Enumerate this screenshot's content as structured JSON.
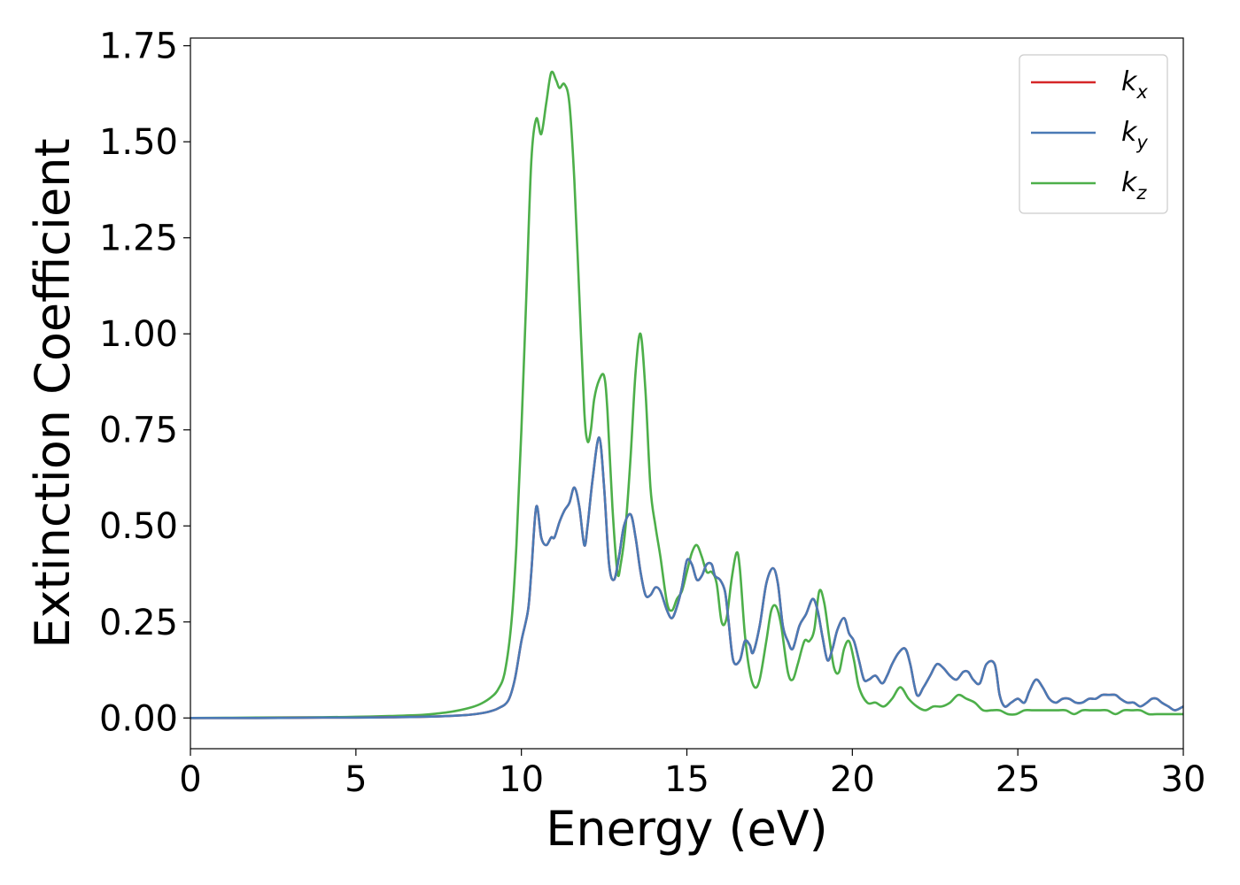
{
  "chart_data": {
    "type": "line",
    "xlabel": "Energy (eV)",
    "ylabel": "Extinction Coefficient",
    "xlim": [
      0,
      30
    ],
    "ylim": [
      -0.08,
      1.77
    ],
    "xticks": [
      "0",
      "5",
      "10",
      "15",
      "20",
      "25",
      "30"
    ],
    "yticks": [
      "0.00",
      "0.25",
      "0.50",
      "0.75",
      "1.00",
      "1.25",
      "1.50",
      "1.75"
    ],
    "grid": false,
    "legend_position": "top-right",
    "series": [
      {
        "name": "k_x",
        "legend_base": "k",
        "legend_sub": "x",
        "color": "#d62728",
        "x": [
          0,
          2,
          4,
          5,
          6,
          7,
          8,
          8.5,
          9,
          9.3,
          9.6,
          9.8,
          10.0,
          10.2,
          10.3,
          10.45,
          10.6,
          10.75,
          10.9,
          11.0,
          11.15,
          11.3,
          11.45,
          11.6,
          11.75,
          11.9,
          12.0,
          12.15,
          12.35,
          12.5,
          12.65,
          12.8,
          12.95,
          13.1,
          13.3,
          13.45,
          13.6,
          13.75,
          13.9,
          14.05,
          14.2,
          14.4,
          14.55,
          14.7,
          14.85,
          15.0,
          15.15,
          15.3,
          15.45,
          15.6,
          15.75,
          15.85,
          16.0,
          16.15,
          16.25,
          16.4,
          16.6,
          16.75,
          16.9,
          17.0,
          17.2,
          17.4,
          17.6,
          17.75,
          17.9,
          18.05,
          18.2,
          18.4,
          18.6,
          18.8,
          18.95,
          19.1,
          19.25,
          19.4,
          19.55,
          19.75,
          19.9,
          20.05,
          20.2,
          20.35,
          20.5,
          20.7,
          20.9,
          21.05,
          21.2,
          21.4,
          21.6,
          21.75,
          21.95,
          22.15,
          22.35,
          22.55,
          22.75,
          22.95,
          23.15,
          23.35,
          23.5,
          23.65,
          23.85,
          24.05,
          24.3,
          24.45,
          24.6,
          24.8,
          25.0,
          25.2,
          25.35,
          25.55,
          25.75,
          25.95,
          26.15,
          26.35,
          26.55,
          26.75,
          26.95,
          27.15,
          27.35,
          27.55,
          27.75,
          27.95,
          28.1,
          28.3,
          28.5,
          28.7,
          28.9,
          29.05,
          29.2,
          29.35,
          29.55,
          29.75,
          30.0
        ],
        "y": [
          0.0,
          0.0,
          0.001,
          0.001,
          0.002,
          0.003,
          0.006,
          0.009,
          0.016,
          0.025,
          0.045,
          0.1,
          0.2,
          0.28,
          0.38,
          0.55,
          0.47,
          0.45,
          0.47,
          0.47,
          0.51,
          0.54,
          0.56,
          0.6,
          0.55,
          0.45,
          0.5,
          0.62,
          0.73,
          0.6,
          0.4,
          0.36,
          0.42,
          0.5,
          0.53,
          0.47,
          0.38,
          0.32,
          0.32,
          0.34,
          0.33,
          0.28,
          0.26,
          0.29,
          0.34,
          0.41,
          0.4,
          0.36,
          0.37,
          0.4,
          0.4,
          0.37,
          0.36,
          0.33,
          0.26,
          0.15,
          0.15,
          0.2,
          0.19,
          0.17,
          0.24,
          0.35,
          0.39,
          0.35,
          0.24,
          0.2,
          0.18,
          0.24,
          0.27,
          0.31,
          0.28,
          0.21,
          0.15,
          0.18,
          0.23,
          0.26,
          0.22,
          0.2,
          0.15,
          0.1,
          0.1,
          0.11,
          0.09,
          0.11,
          0.14,
          0.17,
          0.18,
          0.14,
          0.06,
          0.08,
          0.11,
          0.14,
          0.13,
          0.11,
          0.1,
          0.12,
          0.12,
          0.1,
          0.09,
          0.14,
          0.14,
          0.06,
          0.03,
          0.04,
          0.05,
          0.04,
          0.07,
          0.1,
          0.08,
          0.05,
          0.04,
          0.05,
          0.05,
          0.04,
          0.04,
          0.05,
          0.05,
          0.06,
          0.06,
          0.06,
          0.05,
          0.04,
          0.04,
          0.03,
          0.04,
          0.05,
          0.05,
          0.04,
          0.03,
          0.02,
          0.03
        ]
      },
      {
        "name": "k_y",
        "legend_base": "k",
        "legend_sub": "y",
        "color": "#4a7ab5",
        "x": [
          0,
          2,
          4,
          5,
          6,
          7,
          8,
          8.5,
          9,
          9.3,
          9.6,
          9.8,
          10.0,
          10.2,
          10.3,
          10.45,
          10.6,
          10.75,
          10.9,
          11.0,
          11.15,
          11.3,
          11.45,
          11.6,
          11.75,
          11.9,
          12.0,
          12.15,
          12.35,
          12.5,
          12.65,
          12.8,
          12.95,
          13.1,
          13.3,
          13.45,
          13.6,
          13.75,
          13.9,
          14.05,
          14.2,
          14.4,
          14.55,
          14.7,
          14.85,
          15.0,
          15.15,
          15.3,
          15.45,
          15.6,
          15.75,
          15.85,
          16.0,
          16.15,
          16.25,
          16.4,
          16.6,
          16.75,
          16.9,
          17.0,
          17.2,
          17.4,
          17.6,
          17.75,
          17.9,
          18.05,
          18.2,
          18.4,
          18.6,
          18.8,
          18.95,
          19.1,
          19.25,
          19.4,
          19.55,
          19.75,
          19.9,
          20.05,
          20.2,
          20.35,
          20.5,
          20.7,
          20.9,
          21.05,
          21.2,
          21.4,
          21.6,
          21.75,
          21.95,
          22.15,
          22.35,
          22.55,
          22.75,
          22.95,
          23.15,
          23.35,
          23.5,
          23.65,
          23.85,
          24.05,
          24.3,
          24.45,
          24.6,
          24.8,
          25.0,
          25.2,
          25.35,
          25.55,
          25.75,
          25.95,
          26.15,
          26.35,
          26.55,
          26.75,
          26.95,
          27.15,
          27.35,
          27.55,
          27.75,
          27.95,
          28.1,
          28.3,
          28.5,
          28.7,
          28.9,
          29.05,
          29.2,
          29.35,
          29.55,
          29.75,
          30.0
        ],
        "y": [
          0.0,
          0.0,
          0.001,
          0.001,
          0.002,
          0.003,
          0.006,
          0.009,
          0.016,
          0.025,
          0.045,
          0.1,
          0.2,
          0.28,
          0.38,
          0.55,
          0.47,
          0.45,
          0.47,
          0.47,
          0.51,
          0.54,
          0.56,
          0.6,
          0.55,
          0.45,
          0.5,
          0.62,
          0.73,
          0.6,
          0.4,
          0.36,
          0.42,
          0.5,
          0.53,
          0.47,
          0.38,
          0.32,
          0.32,
          0.34,
          0.33,
          0.28,
          0.26,
          0.29,
          0.34,
          0.41,
          0.4,
          0.36,
          0.37,
          0.4,
          0.4,
          0.37,
          0.36,
          0.33,
          0.26,
          0.15,
          0.15,
          0.2,
          0.19,
          0.17,
          0.24,
          0.35,
          0.39,
          0.35,
          0.24,
          0.2,
          0.18,
          0.24,
          0.27,
          0.31,
          0.28,
          0.21,
          0.15,
          0.18,
          0.23,
          0.26,
          0.22,
          0.2,
          0.15,
          0.1,
          0.1,
          0.11,
          0.09,
          0.11,
          0.14,
          0.17,
          0.18,
          0.14,
          0.06,
          0.08,
          0.11,
          0.14,
          0.13,
          0.11,
          0.1,
          0.12,
          0.12,
          0.1,
          0.09,
          0.14,
          0.14,
          0.06,
          0.03,
          0.04,
          0.05,
          0.04,
          0.07,
          0.1,
          0.08,
          0.05,
          0.04,
          0.05,
          0.05,
          0.04,
          0.04,
          0.05,
          0.05,
          0.06,
          0.06,
          0.06,
          0.05,
          0.04,
          0.04,
          0.03,
          0.04,
          0.05,
          0.05,
          0.04,
          0.03,
          0.02,
          0.03
        ]
      },
      {
        "name": "k_z",
        "legend_base": "k",
        "legend_sub": "z",
        "color": "#4daf4a",
        "x": [
          0,
          2,
          4,
          5,
          6,
          7,
          7.5,
          8,
          8.5,
          8.8,
          9.1,
          9.3,
          9.5,
          9.7,
          9.85,
          10.0,
          10.15,
          10.3,
          10.45,
          10.6,
          10.75,
          10.9,
          11.05,
          11.15,
          11.3,
          11.45,
          11.6,
          11.75,
          11.9,
          12.0,
          12.1,
          12.2,
          12.35,
          12.5,
          12.6,
          12.75,
          12.9,
          13.0,
          13.15,
          13.3,
          13.45,
          13.6,
          13.75,
          13.9,
          14.05,
          14.2,
          14.4,
          14.55,
          14.7,
          14.85,
          15.0,
          15.15,
          15.3,
          15.45,
          15.6,
          15.75,
          15.9,
          16.05,
          16.2,
          16.35,
          16.5,
          16.6,
          16.75,
          16.9,
          17.05,
          17.2,
          17.4,
          17.55,
          17.7,
          17.85,
          18.05,
          18.2,
          18.35,
          18.55,
          18.7,
          18.85,
          19.0,
          19.15,
          19.3,
          19.45,
          19.6,
          19.75,
          19.9,
          20.05,
          20.2,
          20.45,
          20.7,
          20.95,
          21.2,
          21.45,
          21.7,
          21.95,
          22.2,
          22.45,
          22.7,
          22.95,
          23.2,
          23.45,
          23.7,
          23.95,
          24.2,
          24.45,
          24.7,
          24.95,
          25.2,
          25.45,
          25.7,
          25.95,
          26.2,
          26.45,
          26.7,
          26.95,
          27.2,
          27.45,
          27.7,
          27.95,
          28.2,
          28.45,
          28.7,
          28.95,
          29.2,
          29.45,
          29.7,
          30.0
        ],
        "y": [
          0.0,
          0.001,
          0.002,
          0.003,
          0.005,
          0.008,
          0.012,
          0.018,
          0.028,
          0.038,
          0.055,
          0.075,
          0.12,
          0.25,
          0.45,
          0.75,
          1.1,
          1.45,
          1.56,
          1.52,
          1.6,
          1.68,
          1.66,
          1.64,
          1.65,
          1.6,
          1.4,
          1.1,
          0.8,
          0.72,
          0.75,
          0.83,
          0.88,
          0.89,
          0.8,
          0.55,
          0.38,
          0.4,
          0.5,
          0.68,
          0.9,
          1.0,
          0.85,
          0.6,
          0.5,
          0.42,
          0.3,
          0.28,
          0.31,
          0.33,
          0.38,
          0.43,
          0.45,
          0.42,
          0.38,
          0.38,
          0.35,
          0.25,
          0.26,
          0.36,
          0.43,
          0.39,
          0.22,
          0.12,
          0.08,
          0.1,
          0.2,
          0.28,
          0.29,
          0.24,
          0.12,
          0.1,
          0.14,
          0.2,
          0.2,
          0.23,
          0.33,
          0.3,
          0.21,
          0.13,
          0.12,
          0.18,
          0.2,
          0.15,
          0.08,
          0.04,
          0.04,
          0.03,
          0.05,
          0.08,
          0.05,
          0.03,
          0.02,
          0.03,
          0.03,
          0.04,
          0.06,
          0.05,
          0.04,
          0.02,
          0.02,
          0.02,
          0.01,
          0.01,
          0.02,
          0.02,
          0.02,
          0.02,
          0.02,
          0.02,
          0.01,
          0.02,
          0.02,
          0.02,
          0.02,
          0.01,
          0.02,
          0.02,
          0.02,
          0.01,
          0.01,
          0.01,
          0.01,
          0.01
        ]
      }
    ]
  }
}
